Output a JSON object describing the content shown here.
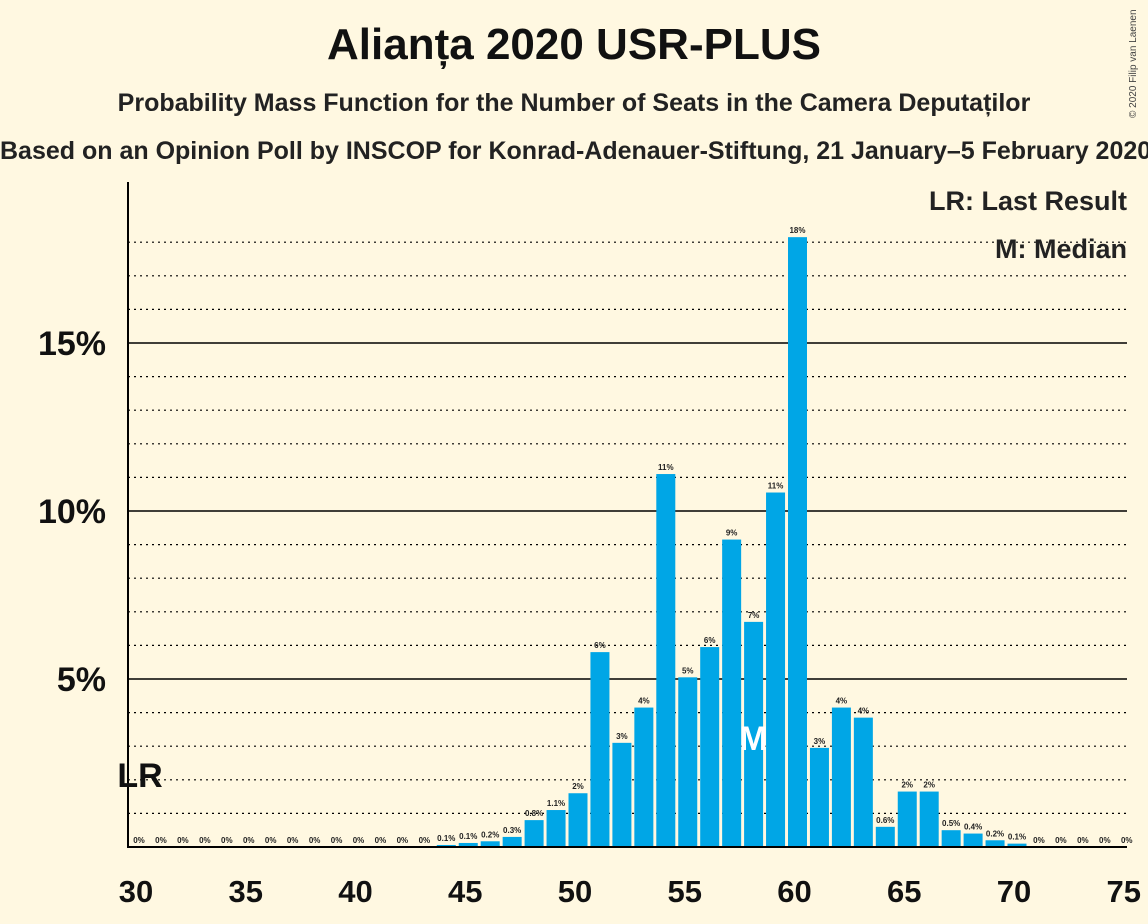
{
  "title": "Alianța 2020 USR-PLUS",
  "subtitle": "Probability Mass Function for the Number of Seats in the Camera Deputaților",
  "source": "Based on an Opinion Poll by INSCOP for Konrad-Adenauer-Stiftung, 21 January–5 February 2020",
  "copyright": "© 2020 Filip van Laenen",
  "legend": {
    "last_result": "LR: Last Result",
    "median": "M: Median"
  },
  "markers": {
    "last_result_label": "LR",
    "last_result_seats": 30,
    "median_label": "M",
    "median_seats": 58
  },
  "colors": {
    "background": "#fff8e1",
    "bar": "#00a6e6",
    "text": "#222222"
  },
  "chart_data": {
    "type": "bar",
    "x": [
      30,
      31,
      32,
      33,
      34,
      35,
      36,
      37,
      38,
      39,
      40,
      41,
      42,
      43,
      44,
      45,
      46,
      47,
      48,
      49,
      50,
      51,
      52,
      53,
      54,
      55,
      56,
      57,
      58,
      59,
      60,
      61,
      62,
      63,
      64,
      65,
      66,
      67,
      68,
      69,
      70,
      71,
      72,
      73,
      74,
      75
    ],
    "values": [
      0,
      0,
      0,
      0,
      0,
      0,
      0,
      0,
      0,
      0,
      0,
      0,
      0,
      0,
      0.06,
      0.12,
      0.17,
      0.3,
      0.8,
      1.1,
      1.6,
      5.8,
      3.1,
      4.15,
      11.1,
      5.05,
      5.95,
      9.15,
      6.7,
      10.55,
      18.15,
      2.95,
      4.15,
      3.85,
      0.6,
      1.65,
      1.65,
      0.5,
      0.4,
      0.2,
      0.1,
      0,
      0,
      0,
      0,
      0
    ],
    "labels": [
      "0%",
      "0%",
      "0%",
      "0%",
      "0%",
      "0%",
      "0%",
      "0%",
      "0%",
      "0%",
      "0%",
      "0%",
      "0%",
      "0%",
      "0.1%",
      "0.1%",
      "0.2%",
      "0.3%",
      "0.8%",
      "1.1%",
      "2%",
      "6%",
      "3%",
      "4%",
      "11%",
      "5%",
      "6%",
      "9%",
      "7%",
      "11%",
      "18%",
      "3%",
      "4%",
      "4%",
      "0.6%",
      "2%",
      "2%",
      "0.5%",
      "0.4%",
      "0.2%",
      "0.1%",
      "0%",
      "0%",
      "0%",
      "0%",
      "0%"
    ],
    "xticks": [
      30,
      35,
      40,
      45,
      50,
      55,
      60,
      65,
      70,
      75
    ],
    "yticks": [
      5,
      10,
      15
    ],
    "ytick_labels": [
      "5%",
      "10%",
      "15%"
    ],
    "ylim": [
      0,
      20
    ],
    "xlim": [
      30,
      75
    ],
    "grid": true
  }
}
